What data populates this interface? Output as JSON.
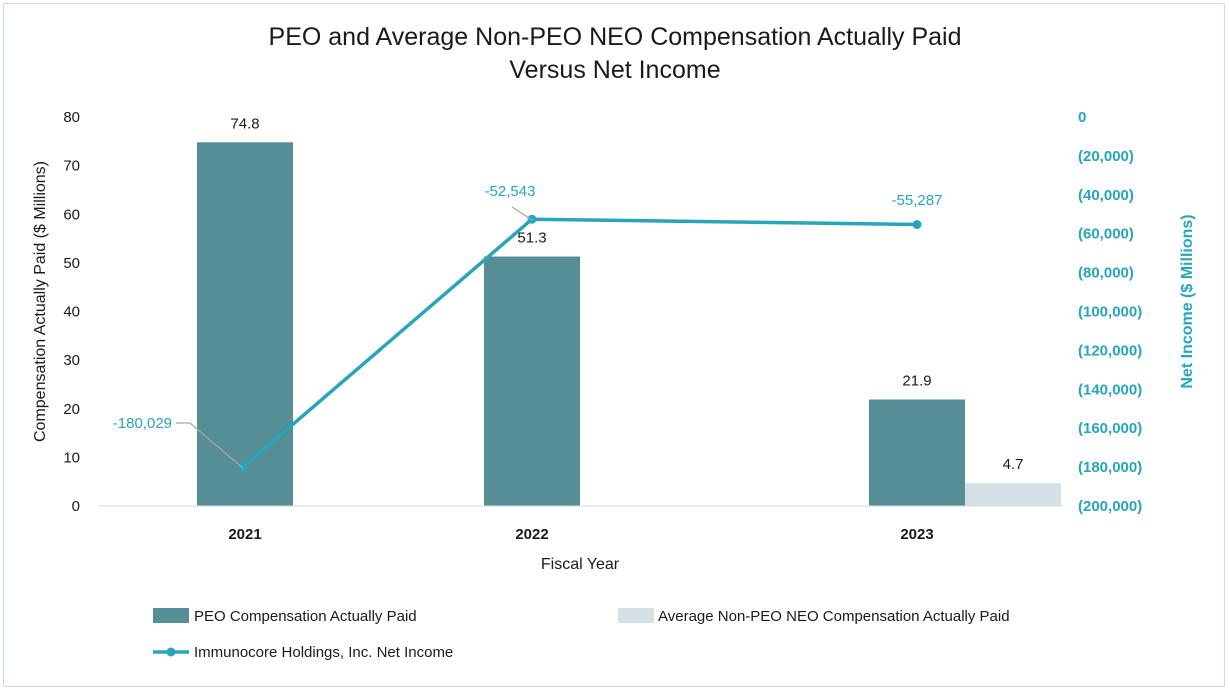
{
  "chart_data": {
    "type": "bar",
    "title": [
      "PEO and Average Non-PEO NEO Compensation Actually Paid",
      "Versus Net Income"
    ],
    "xlabel": "Fiscal Year",
    "ylabel": "Compensation Actually Paid ($ Millions)",
    "ylabel_right": "Net Income ($ Millions)",
    "categories": [
      "2021",
      "2022",
      "2023"
    ],
    "ylim": [
      0,
      80
    ],
    "yticks": [
      0,
      10,
      20,
      30,
      40,
      50,
      60,
      70,
      80
    ],
    "ylim_right": [
      -200000,
      0
    ],
    "yticks_right": [
      "0",
      "(20,000)",
      "(40,000)",
      "(60,000)",
      "(80,000)",
      "(100,000)",
      "(120,000)",
      "(140,000)",
      "(160,000)",
      "(180,000)",
      "(200,000)"
    ],
    "series": [
      {
        "name": "PEO Compensation Actually Paid",
        "kind": "bar",
        "axis": "left",
        "color": "#558e95",
        "values": [
          74.8,
          51.3,
          21.9
        ],
        "labels": [
          "74.8",
          "51.3",
          "21.9"
        ]
      },
      {
        "name": "Average Non-PEO NEO Compensation Actually Paid",
        "kind": "bar",
        "axis": "left",
        "color": "#d4e1e4",
        "values": [
          null,
          null,
          4.7
        ],
        "labels": [
          "",
          "",
          "4.7"
        ]
      },
      {
        "name": "Immunocore Holdings, Inc. Net Income",
        "kind": "line",
        "axis": "right",
        "color": "#27a6ba",
        "values": [
          -180029,
          -52543,
          -55287
        ],
        "labels": [
          "-180,029",
          "-52,543",
          "-55,287"
        ]
      }
    ],
    "legend_position": "bottom",
    "grid": false
  }
}
